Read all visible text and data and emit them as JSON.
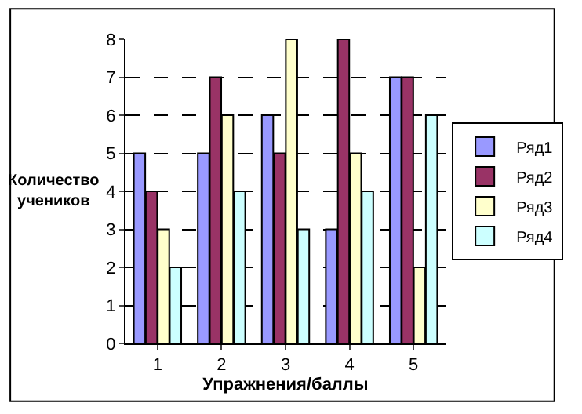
{
  "chart_data": {
    "type": "bar",
    "xlabel": "Упражнения/баллы",
    "ylabel": "Количество учеников",
    "categories": [
      "1",
      "2",
      "3",
      "4",
      "5"
    ],
    "series": [
      {
        "name": "Ряд1",
        "color": "#9999ff",
        "values": [
          5,
          5,
          6,
          3,
          7
        ]
      },
      {
        "name": "Ряд2",
        "color": "#993366",
        "values": [
          4,
          7,
          5,
          8,
          7
        ]
      },
      {
        "name": "Ряд3",
        "color": "#ffffcc",
        "values": [
          3,
          6,
          8,
          5,
          2
        ]
      },
      {
        "name": "Ряд4",
        "color": "#ccffff",
        "values": [
          2,
          4,
          3,
          4,
          6
        ]
      }
    ],
    "ylim": [
      0,
      8
    ],
    "yticks": [
      0,
      1,
      2,
      3,
      4,
      5,
      6,
      7,
      8
    ],
    "grid": "y",
    "legend": "right"
  }
}
